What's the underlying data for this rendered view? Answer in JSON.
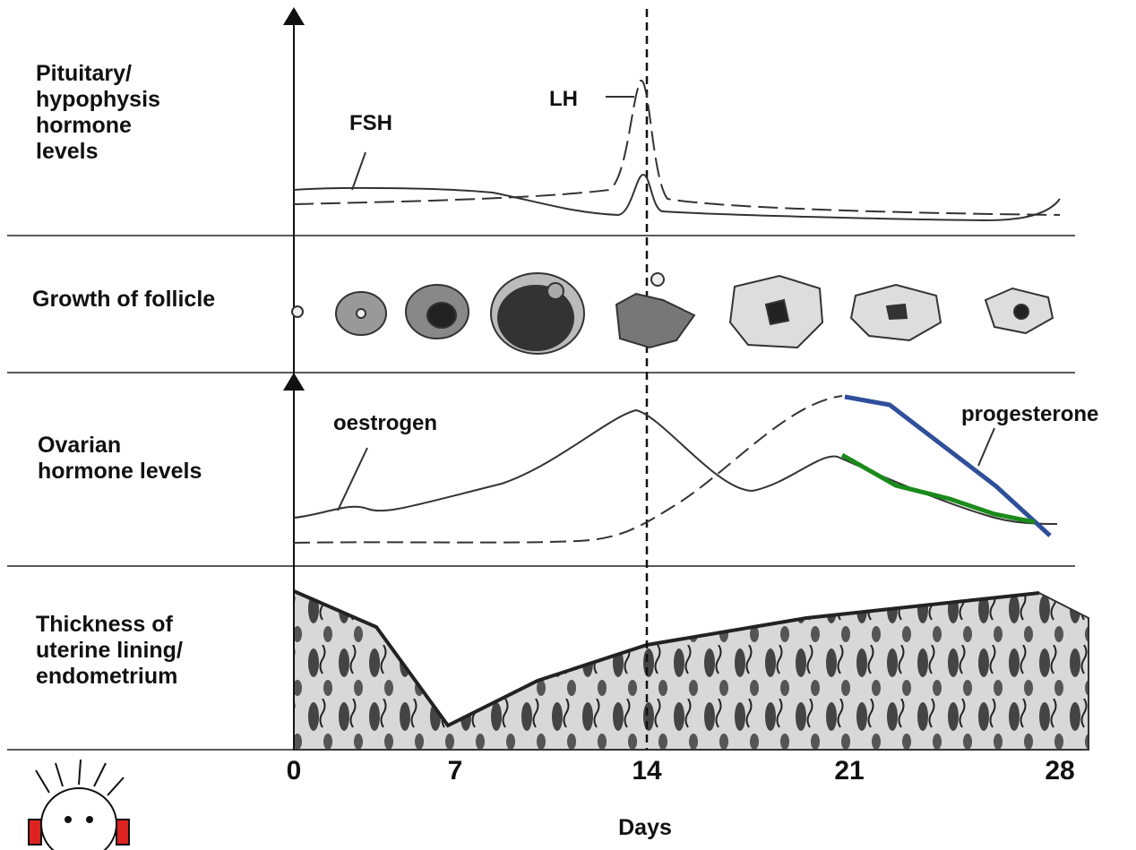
{
  "rows": [
    {
      "label": [
        "Pituitary/",
        "hypophysis",
        "hormone",
        "levels"
      ]
    },
    {
      "label": [
        "Growth of follicle"
      ]
    },
    {
      "label": [
        "Ovarian",
        "hormone levels"
      ]
    },
    {
      "label": [
        "Thickness of",
        "uterine lining/",
        "endometrium"
      ]
    }
  ],
  "curve_labels": {
    "fsh": "FSH",
    "lh": "LH",
    "oestrogen": "oestrogen",
    "progesterone": "progesterone"
  },
  "axis": {
    "ticks": [
      "0",
      "7",
      "14",
      "21",
      "28"
    ],
    "title": "Days"
  }
}
